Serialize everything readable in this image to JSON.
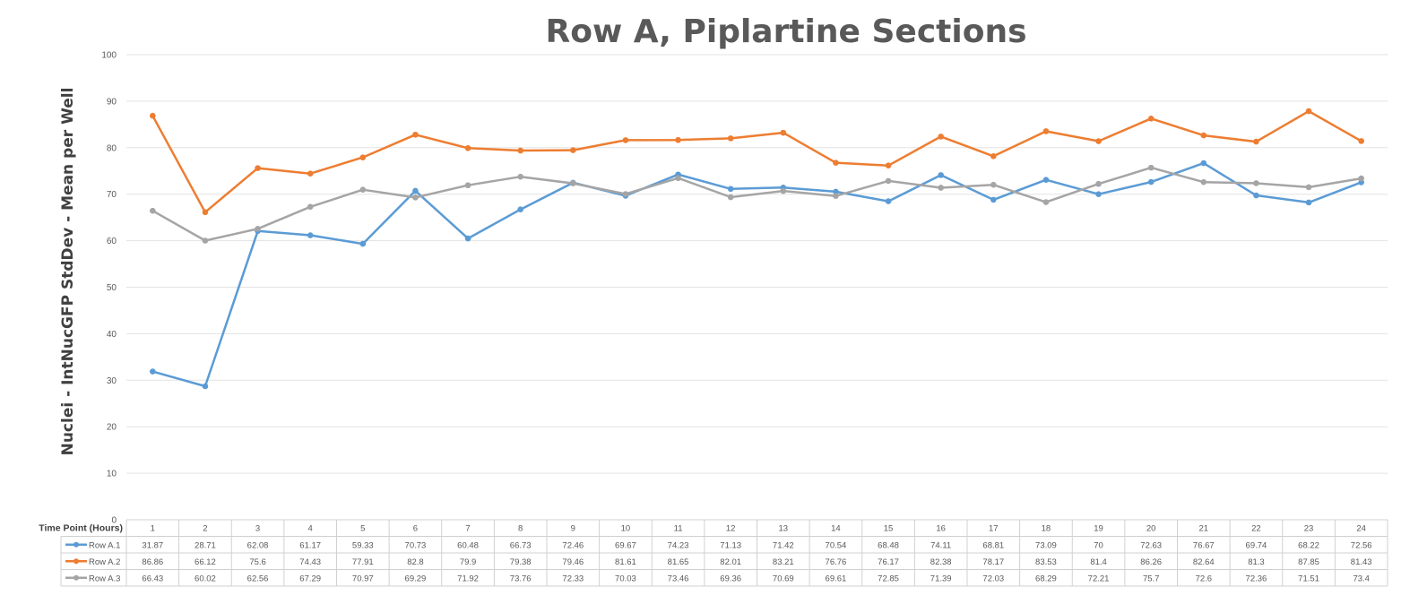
{
  "chart_data": {
    "type": "line",
    "title": "Row A, Piplartine Sections",
    "ylabel": "Nuclei - IntNucGFP StdDev - Mean per Well",
    "xlabel": "Time Point (Hours)",
    "ylim": [
      0,
      100
    ],
    "yticks": [
      0,
      10,
      20,
      30,
      40,
      50,
      60,
      70,
      80,
      90,
      100
    ],
    "grid": true,
    "legend": "data-table",
    "categories": [
      "1",
      "2",
      "3",
      "4",
      "5",
      "6",
      "7",
      "8",
      "9",
      "10",
      "11",
      "12",
      "13",
      "14",
      "15",
      "16",
      "17",
      "18",
      "19",
      "20",
      "21",
      "22",
      "23",
      "24"
    ],
    "series": [
      {
        "name": "Row A.1",
        "color": "#5b9bd5",
        "values": [
          "31.87",
          "28.71",
          "62.08",
          "61.17",
          "59.33",
          "70.73",
          "60.48",
          "66.73",
          "72.46",
          "69.67",
          "74.23",
          "71.13",
          "71.42",
          "70.54",
          "68.48",
          "74.11",
          "68.81",
          "73.09",
          "70",
          "72.63",
          "76.67",
          "69.74",
          "68.22",
          "72.56"
        ]
      },
      {
        "name": "Row A.2",
        "color": "#ed7d31",
        "values": [
          "86.86",
          "66.12",
          "75.6",
          "74.43",
          "77.91",
          "82.8",
          "79.9",
          "79.38",
          "79.46",
          "81.61",
          "81.65",
          "82.01",
          "83.21",
          "76.76",
          "76.17",
          "82.38",
          "78.17",
          "83.53",
          "81.4",
          "86.26",
          "82.64",
          "81.3",
          "87.85",
          "81.43"
        ]
      },
      {
        "name": "Row A.3",
        "color": "#a5a5a5",
        "values": [
          "66.43",
          "60.02",
          "62.56",
          "67.29",
          "70.97",
          "69.29",
          "71.92",
          "73.76",
          "72.33",
          "70.03",
          "73.46",
          "69.36",
          "70.69",
          "69.61",
          "72.85",
          "71.39",
          "72.03",
          "68.29",
          "72.21",
          "75.7",
          "72.6",
          "72.36",
          "71.51",
          "73.4"
        ]
      }
    ]
  }
}
